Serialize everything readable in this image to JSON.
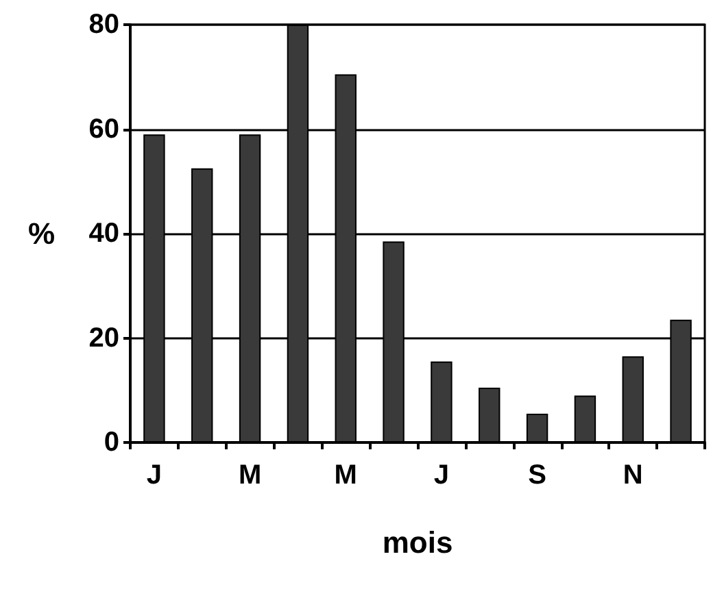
{
  "chart_data": {
    "type": "bar",
    "xlabel": "mois",
    "ylabel": "%",
    "categories": [
      "J",
      null,
      "M",
      null,
      "M",
      null,
      "J",
      null,
      "S",
      null,
      "N",
      null
    ],
    "values": [
      59,
      52.5,
      59,
      80,
      70.5,
      38.5,
      15.5,
      10.5,
      5.5,
      9,
      16.5,
      23.5
    ],
    "color": "#3a3a3a",
    "ylim": [
      0,
      80
    ],
    "yticks": [
      0,
      20,
      40,
      60,
      80
    ],
    "grid": "y"
  }
}
